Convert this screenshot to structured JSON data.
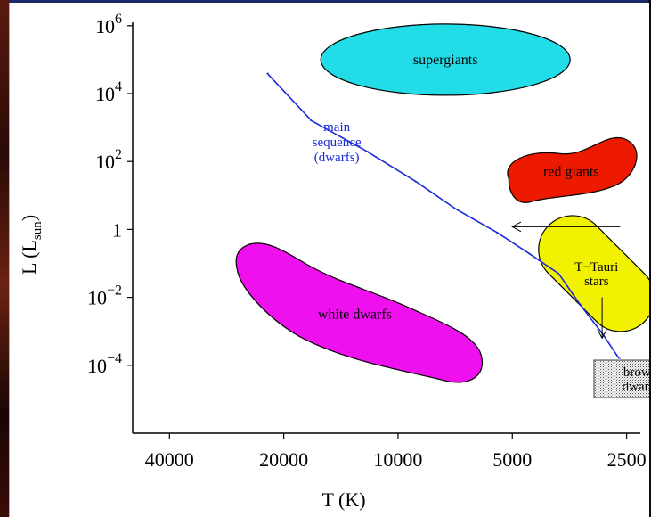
{
  "chart_data": {
    "type": "scatter",
    "title": "",
    "xlabel": "T (K)",
    "ylabel": "L (L",
    "ylabel_sub": "sun",
    "ylabel_close": ")",
    "x_axis": {
      "scale": "log",
      "reversed": true,
      "range": [
        50000,
        2300
      ],
      "ticks": [
        {
          "value": 40000,
          "label": "40000"
        },
        {
          "value": 20000,
          "label": "20000"
        },
        {
          "value": 10000,
          "label": "10000"
        },
        {
          "value": 5000,
          "label": "5000"
        },
        {
          "value": 2500,
          "label": "2500"
        }
      ]
    },
    "y_axis": {
      "scale": "log",
      "range_log10": [
        -6.0,
        6.1
      ],
      "ticks": [
        {
          "log10": 6,
          "base": "10",
          "exp": "6"
        },
        {
          "log10": 4,
          "base": "10",
          "exp": "4"
        },
        {
          "log10": 2,
          "base": "10",
          "exp": "2"
        },
        {
          "log10": 0,
          "base": "1",
          "exp": ""
        },
        {
          "log10": -2,
          "base": "10",
          "exp": "−2"
        },
        {
          "log10": -4,
          "base": "10",
          "exp": "−4"
        }
      ]
    },
    "grid": false,
    "regions": [
      {
        "name": "supergiants",
        "label": "supergiants",
        "color": "#22dde8",
        "T_center": 7500,
        "logL_center": 5.0
      },
      {
        "name": "red giants",
        "label": "red giants",
        "color": "#ee1a00",
        "T_center": 3500,
        "logL_center": 1.7
      },
      {
        "name": "white dwarfs",
        "label": "white dwarfs",
        "color": "#ee11ee",
        "T_center": 13000,
        "logL_center": -2.5
      },
      {
        "name": "T Tauri stars",
        "label_lines": [
          "T−Tauri",
          "stars"
        ],
        "color": "#f2f200",
        "T_center": 3000,
        "logL_center": -1.3
      },
      {
        "name": "brown dwarfs",
        "label_lines": [
          "brown",
          "dwarfs"
        ],
        "color": "#cccccc",
        "T_center": 2300,
        "logL_center": -4.4
      }
    ],
    "series": [
      {
        "name": "main sequence (dwarfs)",
        "color": "#1a2ad8",
        "label_lines": [
          "main",
          "sequence",
          "(dwarfs)"
        ],
        "points": [
          [
            22000,
            4.6
          ],
          [
            17000,
            3.2
          ],
          [
            12000,
            2.3
          ],
          [
            9000,
            1.4
          ],
          [
            7000,
            0.6
          ],
          [
            5500,
            -0.1
          ],
          [
            4500,
            -0.7
          ],
          [
            3800,
            -1.3
          ],
          [
            3300,
            -2.2
          ],
          [
            2900,
            -3.1
          ],
          [
            2600,
            -3.8
          ]
        ]
      }
    ],
    "annotations": [
      {
        "type": "arrow",
        "description": "T Tauri stars move toward the main sequence",
        "from_T": 2600,
        "from_logL": 0.08,
        "to_T": 5000,
        "to_logL": 0.08
      },
      {
        "type": "arrow",
        "description": "T Tauri stars move down toward brown dwarfs",
        "from_T": 2900,
        "from_logL": -2.0,
        "to_T": 2900,
        "to_logL": -3.2
      }
    ]
  }
}
